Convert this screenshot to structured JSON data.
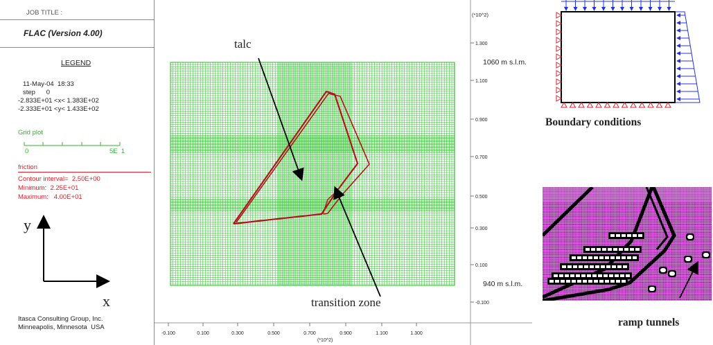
{
  "flac": {
    "job_title": "JOB TITLE :",
    "version": "FLAC (Version 4.00)",
    "legend_title": "LEGEND",
    "date": "11-May-04  18:33",
    "step_label": "step      0",
    "x_range": "-2.833E+01 <x< 1.383E+02",
    "y_range": "-2.333E+01 <y< 1.433E+02",
    "grid_plot_label": "Grid plot",
    "grid_scale_min": "0",
    "grid_scale_max": "5E  1",
    "friction_label": "friction",
    "contour_interval": "Contour interval=  2.50E+00",
    "minimum": "Minimum:  2.25E+01",
    "maximum": "Maximum:   4.00E+01",
    "axis_y": "y",
    "axis_x": "x",
    "company_line1": "Itasca Consulting Group, Inc.",
    "company_line2": "Minneapolis, Minnesota  USA",
    "y_multiplier": "(*10^2)",
    "x_multiplier": "(*10^2)",
    "y_ticks": [
      "1.300",
      "1.100",
      "0.900",
      "0.700",
      "0.500",
      "0.300",
      "0.100",
      "-0.100"
    ],
    "x_ticks": [
      "-0.100",
      "0.100",
      "0.300",
      "0.500",
      "0.700",
      "0.900",
      "1.100",
      "1.300"
    ],
    "elev_top": "1060 m s.l.m.",
    "elev_bottom": "940 m s.l.m.",
    "label_talc": "talc",
    "label_transition": "transition zone"
  },
  "boundary": {
    "caption": "Boundary  conditions"
  },
  "ramp": {
    "caption": "ramp tunnels"
  },
  "colors": {
    "grid_green": "#22c11f",
    "contour_red": "#b1141b",
    "legend_red": "#e0202a",
    "load_blue": "#2433e0",
    "support_red": "#e0202a",
    "mesh_purple": "#9a0fa0"
  }
}
